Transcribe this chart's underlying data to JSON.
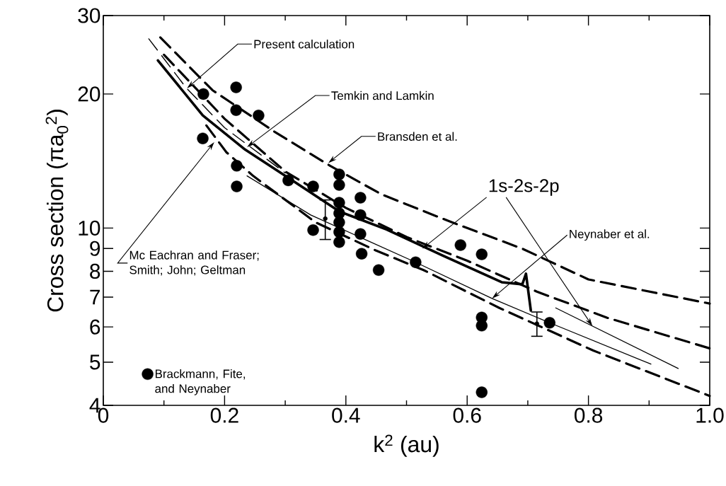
{
  "chart_data": {
    "type": "line",
    "xlabel": "k$^{2}$ (au)",
    "ylabel": "Cross section (πa$_{0}$$^{2}$)",
    "xlim": [
      0,
      1.0
    ],
    "ylim": [
      4,
      30
    ],
    "log": "y",
    "xticks": [
      0,
      0.2,
      0.4,
      0.6,
      0.8,
      {
        "value": 1.0,
        "label": "1.0"
      }
    ],
    "yticks": [
      4,
      5,
      6,
      7,
      8,
      9,
      10,
      20,
      30
    ],
    "grid": false,
    "legend": "bottom left",
    "series": [
      {
        "color": "#000000",
        "line_style": "dashed",
        "x": [
          0.094,
          0.18,
          0.284,
          0.374,
          0.459,
          0.575,
          0.691,
          0.8,
          1.0
        ],
        "values": [
          26.8,
          20.4,
          16.4,
          13.8,
          11.9,
          10.3,
          8.99,
          7.67,
          6.77
        ]
      },
      {
        "type": "line",
        "color": "#000000",
        "line_style": "dashed",
        "x": [
          0.1,
          0.2,
          0.3,
          0.4,
          0.5,
          0.6,
          0.715,
          0.831,
          1.0
        ],
        "values": [
          24.5,
          17.6,
          13.4,
          11.1,
          9.55,
          8.45,
          7.2,
          6.29,
          5.37
        ]
      },
      {
        "type": "line",
        "color": "#000000",
        "line_style": "solid",
        "x": [
          0.09,
          0.164,
          0.234,
          0.304,
          0.389,
          0.467,
          0.56,
          0.657,
          0.691,
          0.697,
          0.705
        ],
        "values": [
          23.8,
          17.9,
          15.0,
          13.0,
          10.9,
          9.93,
          8.67,
          7.56,
          7.48,
          7.9,
          6.53
        ]
      },
      {
        "type": "line",
        "color": "#000000",
        "line_style": "dashed",
        "x": [
          0.075,
          0.136,
          0.2,
          0.3
        ],
        "values": [
          26.6,
          20.7,
          16.8,
          13.3
        ]
      },
      {
        "type": "line",
        "color": "#000000",
        "line_style": "dashed",
        "x": [
          0.17,
          0.203,
          0.247,
          0.35,
          0.45,
          0.528,
          0.653,
          0.808,
          1.0
        ],
        "values": [
          17.0,
          14.8,
          13.1,
          10.3,
          8.9,
          8.05,
          6.62,
          5.31,
          4.2
        ]
      },
      {
        "type": "line",
        "color": "#000000",
        "line_style": "solid",
        "x": [
          0.237,
          0.342,
          0.515,
          0.641,
          0.736,
          0.903
        ],
        "values": [
          13.1,
          10.7,
          8.38,
          6.95,
          6.13,
          4.95
        ]
      },
      {
        "type": "line",
        "color": "#000000",
        "line_style": "solid",
        "x": [
          0.746,
          0.948
        ],
        "values": [
          6.62,
          4.84
        ]
      },
      {
        "type": "scatter",
        "name": "Brackmann, Fite, and Neynaber",
        "color": "#000000",
        "marker": "circle",
        "x": [
          0.164,
          0.165,
          0.219,
          0.219,
          0.22,
          0.22,
          0.256,
          0.305,
          0.346,
          0.346,
          0.389,
          0.389,
          0.389,
          0.389,
          0.389,
          0.389,
          0.389,
          0.424,
          0.424,
          0.424,
          0.426,
          0.454,
          0.515,
          0.589,
          0.624,
          0.624,
          0.624,
          0.624,
          0.736
        ],
        "values": [
          15.9,
          20.0,
          20.7,
          18.4,
          13.8,
          12.4,
          17.9,
          12.8,
          12.4,
          9.9,
          13.2,
          12.5,
          11.4,
          10.8,
          10.3,
          9.8,
          9.3,
          11.7,
          10.7,
          9.7,
          8.76,
          8.05,
          8.38,
          9.16,
          8.73,
          6.3,
          6.04,
          4.28,
          6.13
        ]
      },
      {
        "type": "scatter",
        "color": "#000000",
        "marker": "none",
        "x": [
          0.366,
          0.715
        ],
        "values": [
          10.5,
          6.1
        ],
        "errors": [
          [
            9.4,
            11.6
          ],
          [
            5.7,
            6.5
          ]
        ]
      }
    ],
    "annotations": [
      {
        "text": "Present calculation",
        "x": 0.138,
        "y": 20.6
      },
      {
        "text": "Temkin and Lamkin",
        "x": 0.237,
        "y": 15.2
      },
      {
        "text": "Bransden et al.",
        "x": 0.371,
        "y": 14.0
      },
      {
        "text": "1s-2s-2p",
        "x": 0.526,
        "y": 8.99
      },
      {
        "text": "Neynaber et al.",
        "x": 0.641,
        "y": 6.95
      },
      {
        "text": "Mc Eachran and Fraser; Smith; John; Geltman",
        "x": 0.183,
        "y": 15.6
      }
    ]
  }
}
